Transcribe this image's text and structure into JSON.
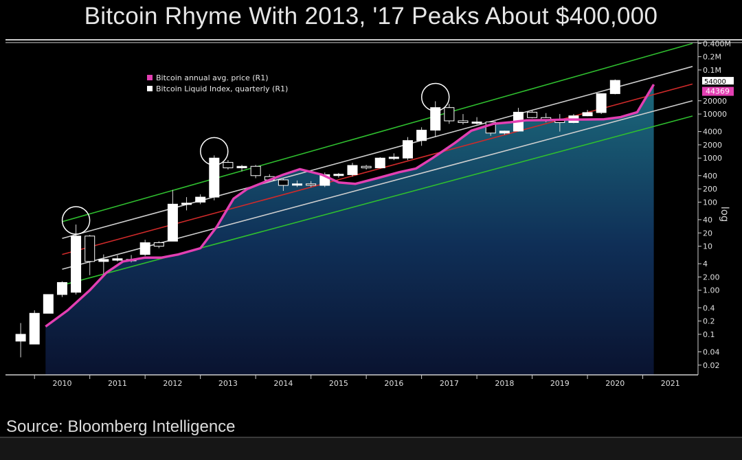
{
  "page": {
    "title": "Bitcoin Rhyme With 2013, '17 Peaks About $400,000",
    "source": "Source: Bloomberg Intelligence"
  },
  "colors": {
    "background": "#000000",
    "price_line": "#e23fb2",
    "upper_band": "#2fbf2f",
    "mid_band": "#d02a2a",
    "inner_band": "#cfcfcf",
    "area_top": "#175b6e",
    "area_bottom": "#0c1431",
    "last_label_bg": "#e23fb2"
  },
  "chart_data": {
    "type": "line",
    "scale": "log",
    "ylabel": "log",
    "x_labels": [
      "2010",
      "2011",
      "2012",
      "2013",
      "2014",
      "2015",
      "2016",
      "2017",
      "2018",
      "2019",
      "2020",
      "2021"
    ],
    "y_ticks": [
      {
        "v": 400000,
        "label": "0.400M"
      },
      {
        "v": 200000,
        "label": "0.2M"
      },
      {
        "v": 100000,
        "label": "0.1M"
      },
      {
        "v": 20000,
        "label": "20000"
      },
      {
        "v": 10000,
        "label": "10000"
      },
      {
        "v": 4000,
        "label": "4000"
      },
      {
        "v": 2000,
        "label": "2000"
      },
      {
        "v": 1000,
        "label": "1000"
      },
      {
        "v": 400,
        "label": "400"
      },
      {
        "v": 200,
        "label": "200"
      },
      {
        "v": 100,
        "label": "100"
      },
      {
        "v": 40,
        "label": "40"
      },
      {
        "v": 20,
        "label": "20"
      },
      {
        "v": 10,
        "label": "10"
      },
      {
        "v": 4,
        "label": "4"
      },
      {
        "v": 2,
        "label": "2.00"
      },
      {
        "v": 1,
        "label": "1.00"
      },
      {
        "v": 0.4,
        "label": "0.4"
      },
      {
        "v": 0.2,
        "label": "0.2"
      },
      {
        "v": 0.1,
        "label": "0.1"
      },
      {
        "v": 0.04,
        "label": "0.04"
      },
      {
        "v": 0.02,
        "label": "0.02"
      }
    ],
    "last_value_labels": [
      "54000",
      "44369"
    ],
    "legend": [
      {
        "name": "Bitcoin annual avg. price (R1)",
        "color": "#e23fb2"
      },
      {
        "name": "Bitcoin Liquid Index, quarterly (R1)",
        "color": "#ffffff"
      }
    ],
    "series": [
      {
        "name": "Bitcoin annual avg. price (R1)",
        "points": [
          [
            2010.2,
            0.15
          ],
          [
            2010.6,
            0.35
          ],
          [
            2011.0,
            1.0
          ],
          [
            2011.3,
            2.5
          ],
          [
            2011.6,
            4.5
          ],
          [
            2012.0,
            5.5
          ],
          [
            2012.3,
            5.5
          ],
          [
            2012.6,
            6.5
          ],
          [
            2013.0,
            9.0
          ],
          [
            2013.3,
            28
          ],
          [
            2013.6,
            120
          ],
          [
            2013.85,
            200
          ],
          [
            2014.2,
            300
          ],
          [
            2014.5,
            420
          ],
          [
            2014.8,
            560
          ],
          [
            2015.2,
            420
          ],
          [
            2015.5,
            280
          ],
          [
            2015.8,
            260
          ],
          [
            2016.2,
            350
          ],
          [
            2016.6,
            480
          ],
          [
            2016.9,
            580
          ],
          [
            2017.2,
            1000
          ],
          [
            2017.6,
            2200
          ],
          [
            2017.9,
            4200
          ],
          [
            2018.3,
            6000
          ],
          [
            2018.6,
            6500
          ],
          [
            2018.9,
            7200
          ],
          [
            2019.3,
            7300
          ],
          [
            2019.6,
            7500
          ],
          [
            2019.9,
            7500
          ],
          [
            2020.3,
            7600
          ],
          [
            2020.6,
            8500
          ],
          [
            2020.9,
            11000
          ],
          [
            2021.2,
            47000
          ]
        ]
      },
      {
        "name": "Bitcoin Liquid Index, quarterly (R1)",
        "candles": [
          {
            "x": 2009.75,
            "o": 0.07,
            "c": 0.1,
            "h": 0.18,
            "l": 0.03
          },
          {
            "x": 2010.0,
            "o": 0.06,
            "c": 0.3,
            "h": 0.35,
            "l": 0.06
          },
          {
            "x": 2010.25,
            "o": 0.3,
            "c": 0.8,
            "h": 0.8,
            "l": 0.3
          },
          {
            "x": 2010.5,
            "o": 0.8,
            "c": 1.5,
            "h": 1.6,
            "l": 0.7
          },
          {
            "x": 2010.75,
            "o": 0.9,
            "c": 17,
            "h": 31,
            "l": 0.8
          },
          {
            "x": 2011.0,
            "o": 17,
            "c": 4.5,
            "h": 18,
            "l": 2.2
          },
          {
            "x": 2011.25,
            "o": 4.5,
            "c": 5,
            "h": 6.5,
            "l": 2.2
          },
          {
            "x": 2011.5,
            "o": 4.8,
            "c": 5.2,
            "h": 6.2,
            "l": 4.5
          },
          {
            "x": 2011.75,
            "o": 5,
            "c": 4.8,
            "h": 6.3,
            "l": 4.3
          },
          {
            "x": 2012.0,
            "o": 6.5,
            "c": 12,
            "h": 14,
            "l": 6
          },
          {
            "x": 2012.25,
            "o": 12,
            "c": 10,
            "h": 13,
            "l": 9
          },
          {
            "x": 2012.5,
            "o": 13,
            "c": 90,
            "h": 190,
            "l": 13
          },
          {
            "x": 2012.75,
            "o": 90,
            "c": 95,
            "h": 130,
            "l": 65
          },
          {
            "x": 2013.0,
            "o": 100,
            "c": 130,
            "h": 150,
            "l": 90
          },
          {
            "x": 2013.25,
            "o": 130,
            "c": 1000,
            "h": 1150,
            "l": 110
          },
          {
            "x": 2013.5,
            "o": 800,
            "c": 600,
            "h": 900,
            "l": 550
          },
          {
            "x": 2013.75,
            "o": 600,
            "c": 650,
            "h": 700,
            "l": 500
          },
          {
            "x": 2014.0,
            "o": 650,
            "c": 400,
            "h": 700,
            "l": 350
          },
          {
            "x": 2014.25,
            "o": 380,
            "c": 320,
            "h": 430,
            "l": 300
          },
          {
            "x": 2014.5,
            "o": 320,
            "c": 240,
            "h": 340,
            "l": 180
          },
          {
            "x": 2014.75,
            "o": 250,
            "c": 260,
            "h": 310,
            "l": 220
          },
          {
            "x": 2015.0,
            "o": 260,
            "c": 250,
            "h": 300,
            "l": 220
          },
          {
            "x": 2015.25,
            "o": 240,
            "c": 420,
            "h": 470,
            "l": 220
          },
          {
            "x": 2015.5,
            "o": 420,
            "c": 430,
            "h": 460,
            "l": 360
          },
          {
            "x": 2015.75,
            "o": 420,
            "c": 680,
            "h": 780,
            "l": 380
          },
          {
            "x": 2016.0,
            "o": 650,
            "c": 600,
            "h": 700,
            "l": 550
          },
          {
            "x": 2016.25,
            "o": 600,
            "c": 1000,
            "h": 1050,
            "l": 580
          },
          {
            "x": 2016.5,
            "o": 1000,
            "c": 1050,
            "h": 1280,
            "l": 900
          },
          {
            "x": 2016.75,
            "o": 1000,
            "c": 2500,
            "h": 3000,
            "l": 900
          },
          {
            "x": 2017.0,
            "o": 2500,
            "c": 4300,
            "h": 5000,
            "l": 1900
          },
          {
            "x": 2017.25,
            "o": 4300,
            "c": 14000,
            "h": 19500,
            "l": 3000
          },
          {
            "x": 2017.5,
            "o": 14000,
            "c": 7000,
            "h": 17000,
            "l": 6000
          },
          {
            "x": 2017.75,
            "o": 7000,
            "c": 6400,
            "h": 10000,
            "l": 5800
          },
          {
            "x": 2018.0,
            "o": 6400,
            "c": 6600,
            "h": 8500,
            "l": 5800
          },
          {
            "x": 2018.25,
            "o": 6600,
            "c": 3700,
            "h": 6800,
            "l": 3200
          },
          {
            "x": 2018.5,
            "o": 3700,
            "c": 4100,
            "h": 4200,
            "l": 3400
          },
          {
            "x": 2018.75,
            "o": 4100,
            "c": 11000,
            "h": 13800,
            "l": 4000
          },
          {
            "x": 2019.0,
            "o": 11000,
            "c": 8300,
            "h": 12500,
            "l": 8000
          },
          {
            "x": 2019.25,
            "o": 8300,
            "c": 7200,
            "h": 10500,
            "l": 6500
          },
          {
            "x": 2019.5,
            "o": 7200,
            "c": 6400,
            "h": 10000,
            "l": 4000
          },
          {
            "x": 2019.75,
            "o": 6400,
            "c": 9100,
            "h": 10000,
            "l": 6200
          },
          {
            "x": 2020.0,
            "o": 9100,
            "c": 10800,
            "h": 12400,
            "l": 8900
          },
          {
            "x": 2020.25,
            "o": 10800,
            "c": 29000,
            "h": 29000,
            "l": 10000
          },
          {
            "x": 2020.5,
            "o": 29000,
            "c": 58000,
            "h": 61000,
            "l": 28000
          }
        ]
      }
    ],
    "bands": [
      {
        "name": "upper",
        "color": "#2fbf2f",
        "x": [
          2010.5,
          2021.9
        ],
        "y": [
          36,
          400000
        ]
      },
      {
        "name": "inner-upper",
        "color": "#cfcfcf",
        "x": [
          2010.5,
          2021.9
        ],
        "y": [
          15,
          120000
        ]
      },
      {
        "name": "mid",
        "color": "#d02a2a",
        "x": [
          2010.5,
          2021.9
        ],
        "y": [
          6.5,
          48000
        ]
      },
      {
        "name": "inner-lower",
        "color": "#cfcfcf",
        "x": [
          2010.5,
          2021.9
        ],
        "y": [
          3.0,
          20000
        ]
      },
      {
        "name": "lower",
        "color": "#2fbf2f",
        "x": [
          2010.5,
          2021.9
        ],
        "y": [
          1.3,
          9000
        ]
      }
    ],
    "highlighted_peaks": [
      {
        "x": 2010.75,
        "y": 31
      },
      {
        "x": 2013.25,
        "y": 1150
      },
      {
        "x": 2017.25,
        "y": 19500
      }
    ],
    "xlim": [
      2009.55,
      2021.95
    ],
    "ylim": [
      0.012,
      450000
    ],
    "grid": false,
    "legend_position": "top-left"
  }
}
